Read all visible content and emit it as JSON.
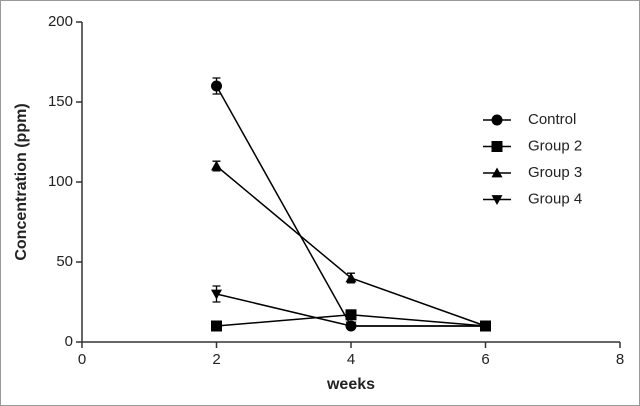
{
  "chart_data": {
    "type": "line",
    "x_label": "weeks",
    "y_label": "Concentration (ppm)",
    "x": [
      2,
      4,
      6
    ],
    "series": [
      {
        "name": "Control",
        "color": "#000000",
        "marker": "circle",
        "values": [
          160,
          10,
          10
        ],
        "errors": [
          5,
          2,
          2
        ]
      },
      {
        "name": "Group 2",
        "color": "#000000",
        "marker": "square",
        "values": [
          10,
          17,
          10
        ],
        "errors": [
          2,
          2,
          2
        ]
      },
      {
        "name": "Group 3",
        "color": "#000000",
        "marker": "triangle-up",
        "values": [
          110,
          40,
          10
        ],
        "errors": [
          3,
          3,
          2
        ]
      },
      {
        "name": "Group 4",
        "color": "#000000",
        "marker": "triangle-down",
        "values": [
          30,
          10,
          10
        ],
        "errors": [
          5,
          2,
          2
        ]
      }
    ],
    "xlim": [
      0,
      8
    ],
    "xticks": [
      0,
      2,
      4,
      6,
      8
    ],
    "ylim": [
      0,
      200
    ],
    "yticks": [
      0,
      50,
      100,
      150,
      200
    ],
    "grid": false,
    "legend": "right"
  }
}
